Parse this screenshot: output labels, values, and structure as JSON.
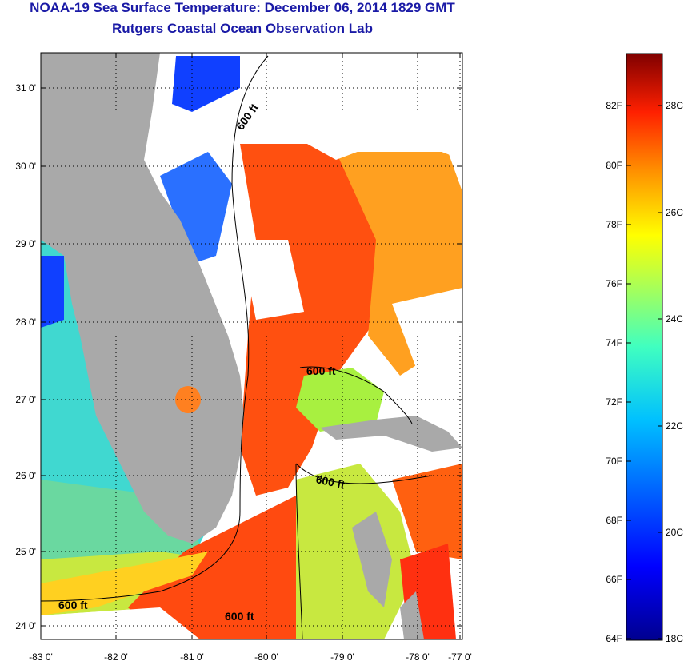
{
  "title": "NOAA-19 Sea Surface Temperature:  December 06, 2014 1829 GMT",
  "subtitle": "Rutgers Coastal Ocean Observation Lab",
  "lat_labels": [
    "31 0'",
    "30 0'",
    "29 0'",
    "28 0'",
    "27 0'",
    "26 0'",
    "25 0'",
    "24 0'"
  ],
  "lon_labels": [
    "-83 0'",
    "-82 0'",
    "-81 0'",
    "-80 0'",
    "-79 0'",
    "-78 0'",
    "-77 0'"
  ],
  "contour_label": "600 ft",
  "colorbar": {
    "f_labels": [
      "82F",
      "80F",
      "78F",
      "76F",
      "74F",
      "72F",
      "70F",
      "68F",
      "66F",
      "64F"
    ],
    "c_labels": [
      "28C",
      "26C",
      "24C",
      "22C",
      "20C",
      "18C"
    ]
  },
  "colors": {
    "land": "#a9a9a9",
    "title": "#1a1aa6",
    "colormap": [
      "#00008f",
      "#0000ff",
      "#0080ff",
      "#00ffff",
      "#80ff80",
      "#ffff00",
      "#ff8000",
      "#ff0000",
      "#800000"
    ]
  }
}
